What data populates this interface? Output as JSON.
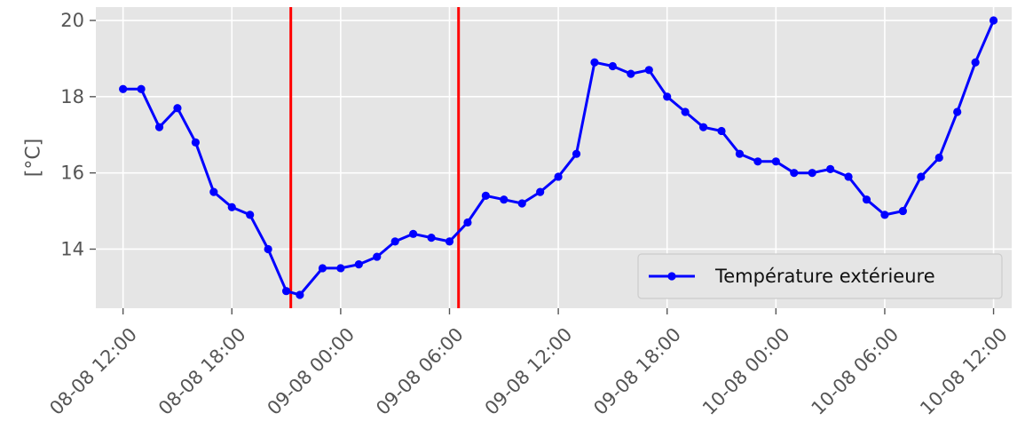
{
  "chart_data": {
    "type": "line",
    "ylabel": "[°C]",
    "ylim": [
      12.45,
      20.35
    ],
    "xlim": [
      "2023-08-08T10:30",
      "2023-08-10T13:00"
    ],
    "x_ticks": [
      {
        "value": "2023-08-08T12:00",
        "label": "08-08 12:00"
      },
      {
        "value": "2023-08-08T18:00",
        "label": "08-08 18:00"
      },
      {
        "value": "2023-08-09T00:00",
        "label": "09-08 00:00"
      },
      {
        "value": "2023-08-09T06:00",
        "label": "09-08 06:00"
      },
      {
        "value": "2023-08-09T12:00",
        "label": "09-08 12:00"
      },
      {
        "value": "2023-08-09T18:00",
        "label": "09-08 18:00"
      },
      {
        "value": "2023-08-10T00:00",
        "label": "10-08 00:00"
      },
      {
        "value": "2023-08-10T06:00",
        "label": "10-08 06:00"
      },
      {
        "value": "2023-08-10T12:00",
        "label": "10-08 12:00"
      }
    ],
    "y_ticks": [
      14,
      16,
      18,
      20
    ],
    "grid": true,
    "legend_position": "bottom-right",
    "series": [
      {
        "name": "Température extérieure",
        "color": "#0000ff",
        "marker": "circle",
        "x": [
          "2023-08-08T12:00",
          "2023-08-08T13:00",
          "2023-08-08T14:00",
          "2023-08-08T15:00",
          "2023-08-08T16:00",
          "2023-08-08T17:00",
          "2023-08-08T18:00",
          "2023-08-08T19:00",
          "2023-08-08T20:00",
          "2023-08-08T21:00",
          "2023-08-08T21:45",
          "2023-08-08T23:00",
          "2023-08-09T00:00",
          "2023-08-09T01:00",
          "2023-08-09T02:00",
          "2023-08-09T03:00",
          "2023-08-09T04:00",
          "2023-08-09T05:00",
          "2023-08-09T06:00",
          "2023-08-09T07:00",
          "2023-08-09T08:00",
          "2023-08-09T09:00",
          "2023-08-09T10:00",
          "2023-08-09T11:00",
          "2023-08-09T12:00",
          "2023-08-09T13:00",
          "2023-08-09T14:00",
          "2023-08-09T15:00",
          "2023-08-09T16:00",
          "2023-08-09T17:00",
          "2023-08-09T18:00",
          "2023-08-09T19:00",
          "2023-08-09T20:00",
          "2023-08-09T21:00",
          "2023-08-09T22:00",
          "2023-08-09T23:00",
          "2023-08-10T00:00",
          "2023-08-10T01:00",
          "2023-08-10T02:00",
          "2023-08-10T03:00",
          "2023-08-10T04:00",
          "2023-08-10T05:00",
          "2023-08-10T06:00",
          "2023-08-10T07:00",
          "2023-08-10T08:00",
          "2023-08-10T09:00",
          "2023-08-10T10:00",
          "2023-08-10T11:00",
          "2023-08-10T12:00"
        ],
        "values": [
          18.2,
          18.2,
          17.2,
          17.7,
          16.8,
          15.5,
          15.1,
          14.9,
          14.0,
          12.9,
          12.8,
          13.5,
          13.5,
          13.6,
          13.8,
          14.2,
          14.4,
          14.3,
          14.2,
          14.7,
          15.4,
          15.3,
          15.2,
          15.5,
          15.9,
          16.5,
          18.9,
          18.8,
          18.6,
          18.7,
          18.0,
          17.6,
          17.2,
          17.1,
          16.5,
          16.3,
          16.3,
          16.0,
          16.0,
          16.1,
          15.9,
          15.3,
          14.9,
          15.0,
          15.9,
          16.4,
          17.6,
          18.9,
          20.0
        ]
      }
    ],
    "vertical_lines": [
      {
        "x": "2023-08-08T21:15",
        "color": "#ff0000"
      },
      {
        "x": "2023-08-09T06:30",
        "color": "#ff0000"
      }
    ],
    "colors": {
      "plot_background": "#e5e5e5",
      "grid": "#ffffff",
      "text": "#555555"
    }
  }
}
